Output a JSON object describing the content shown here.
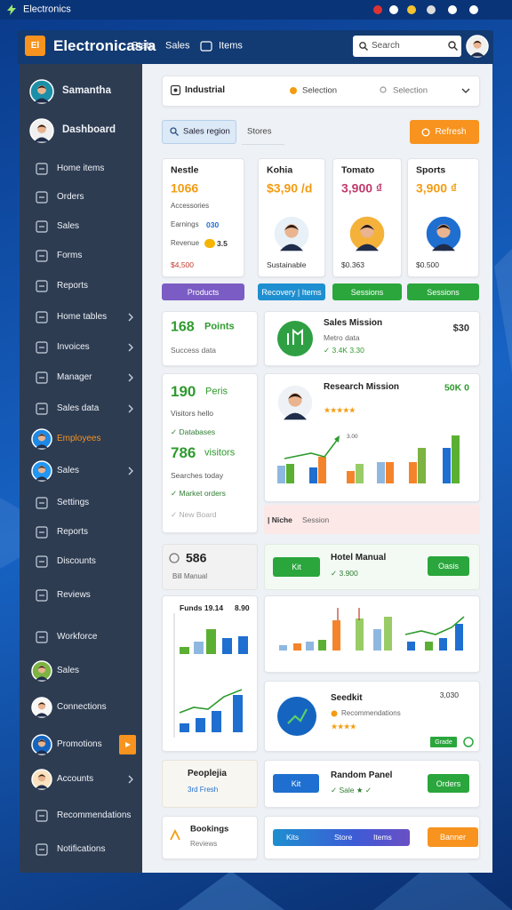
{
  "status_bar": {
    "title": "Electronics"
  },
  "header": {
    "logo": "El",
    "title": "Electronicasia",
    "nav": [
      "Stats",
      "Sales",
      "Items"
    ],
    "search": "Search"
  },
  "sidebar": [
    {
      "label": "Samantha",
      "icon": "avatar"
    },
    {
      "label": "Dashboard",
      "icon": "avatar"
    },
    {
      "label": "Home items",
      "icon": "outline"
    },
    {
      "label": "Orders",
      "icon": "outline"
    },
    {
      "label": "Sales",
      "icon": "outline"
    },
    {
      "label": "Forms",
      "icon": "outline"
    },
    {
      "label": "Reports",
      "icon": "outline"
    },
    {
      "label": "Home tables",
      "icon": "outline",
      "arrow": true
    },
    {
      "label": "Invoices",
      "icon": "outline",
      "arrow": true
    },
    {
      "label": "Manager",
      "icon": "outline",
      "arrow": true
    },
    {
      "label": "Sales data",
      "icon": "outline",
      "arrow": true
    },
    {
      "label": "Employees",
      "icon": "avatar",
      "color": "#f7931e"
    },
    {
      "label": "Sales",
      "icon": "avatar",
      "arrow": true
    },
    {
      "label": "Settings",
      "icon": "outline"
    },
    {
      "label": "Reports",
      "icon": "outline"
    },
    {
      "label": "Discounts",
      "icon": "outline"
    },
    {
      "label": "Reviews",
      "icon": "outline"
    },
    {
      "label": "Workforce",
      "icon": "outline"
    },
    {
      "label": "Sales",
      "icon": "avatar"
    },
    {
      "label": "Connections",
      "icon": "avatar"
    },
    {
      "label": "Promotions",
      "icon": "avatar",
      "badge": true
    },
    {
      "label": "Accounts",
      "icon": "avatar",
      "arrow": true
    },
    {
      "label": "Recommendations",
      "icon": "outline"
    },
    {
      "label": "Notifications",
      "icon": "outline"
    }
  ],
  "filter": {
    "title": "Industrial",
    "option_1": "Selection",
    "option_2": "Selection"
  },
  "tabs": {
    "active": "Sales region",
    "inactive": "Stores",
    "button": "Refresh"
  },
  "products": [
    {
      "name": "Nestle",
      "price": "1066",
      "price_color": "#f39c12",
      "lines": [
        {
          "text": "Accessories"
        },
        {
          "text": "Earnings",
          "value": "030"
        },
        {
          "text": "Revenue",
          "value": "3.5"
        }
      ],
      "footer": "$4,500",
      "footer_color": "#c0392b",
      "button": "Products",
      "button_color": "#7b5cc4"
    },
    {
      "name": "Kohia",
      "price": "$3,90 /d",
      "price_color": "#f39c12",
      "avatar": true,
      "footer": "Sustainable",
      "footer_color": "#333333",
      "button": "Recovery | Items",
      "button_color": "#1e8fd0"
    },
    {
      "name": "Tomato",
      "price": "3,900 ₫",
      "price_color": "#c0396b",
      "avatar": true,
      "footer": "$0.363",
      "footer_color": "#333333",
      "button": "Sessions",
      "button_color": "#2aa63c"
    },
    {
      "name": "Sports",
      "price": "3,900 ₫",
      "price_color": "#f39c12",
      "avatar": true,
      "footer": "$0.500",
      "footer_color": "#333333",
      "button": "Sessions",
      "button_color": "#2aa63c"
    }
  ],
  "points_card": {
    "value": "168",
    "unit": "Points",
    "caption": "Success data"
  },
  "mission_card": {
    "title": "Sales Mission",
    "subtitle": "Metro data",
    "detail": "✓ 3.4K 3.30",
    "amount": "$30"
  },
  "visitors_card": {
    "value_1": "190",
    "unit_1": "Peris",
    "caption_1": "Visitors hello",
    "check_1": "✓ Databases",
    "value_2": "786",
    "unit_2": "visitors",
    "caption_2": "Searches today",
    "check_2": "✓ Market orders",
    "check_3": "✓ New Board"
  },
  "research_card": {
    "title": "Research Mission",
    "amount": "50K 0",
    "rating": "★★★★★",
    "chart_label": "3.00"
  },
  "notice": {
    "tag": "| Niche",
    "text": "Session"
  },
  "bill_card": {
    "value": "586",
    "caption": "Bill Manual"
  },
  "hotel_card": {
    "button_left": "Kit",
    "title": "Hotel Manual",
    "detail": "✓ 3.900",
    "button_right": "Oasis"
  },
  "funds_card": {
    "title": "Funds 19.14",
    "amount": "8.90"
  },
  "seed_card": {
    "title": "Seedkit",
    "subtitle": "Recommendations",
    "rating": "★★★★",
    "amount": "3,030",
    "badge": "Grade"
  },
  "people_card": {
    "title": "Peoplejia",
    "caption": "3rd Fresh"
  },
  "random_card": {
    "button_left": "Kit",
    "title": "Random Panel",
    "detail": "✓ Sale ★ ✓",
    "button_right": "Orders"
  },
  "bookings_card": {
    "title": "Bookings",
    "caption": "Reviews"
  },
  "action_card": {
    "segments": [
      "Kits",
      "Store",
      "Items"
    ],
    "button": "Banner"
  }
}
